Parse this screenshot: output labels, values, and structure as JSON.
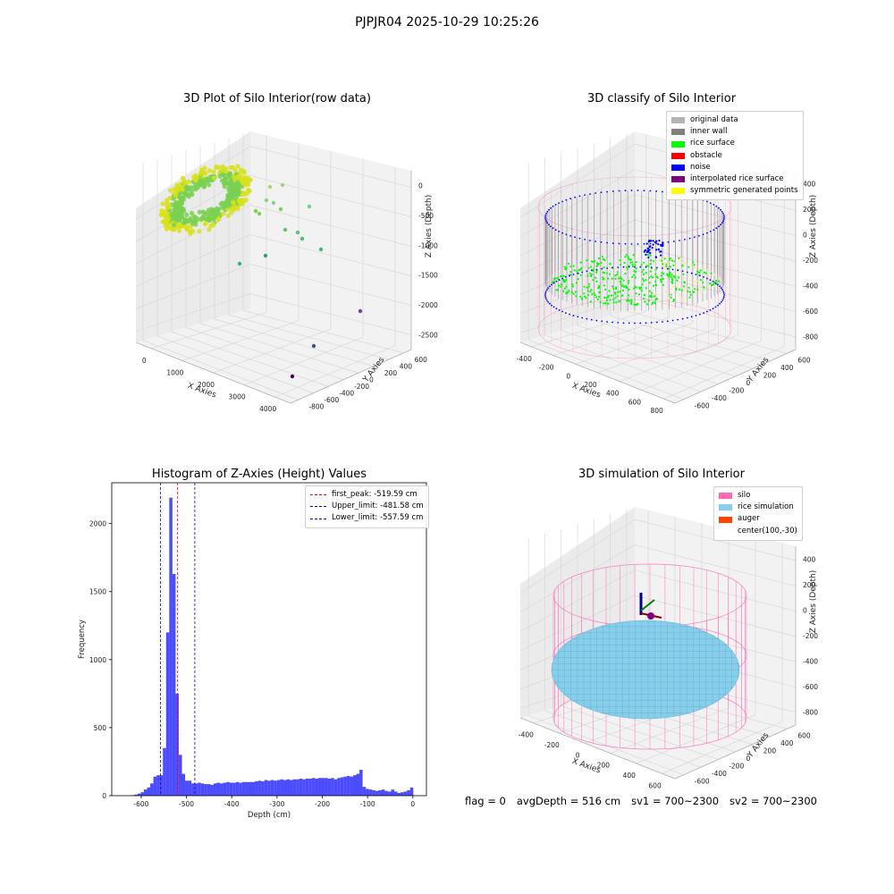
{
  "figure_title": "PJPJR04 2025-10-29 10:25:26",
  "status": {
    "flag": "flag = 0",
    "avg_depth": "avgDepth = 516 cm",
    "sv1": "sv1 = 700~2300",
    "sv2": "sv2 = 700~2300"
  },
  "chart_data": [
    {
      "type": "scatter",
      "title": "3D Plot of Silo Interior(row data)",
      "xlabel": "X Axies",
      "ylabel": "Y Axies",
      "zlabel": "Z Axies (Depth)",
      "x_ticks": [
        "0",
        "1000",
        "2000",
        "3000",
        "4000"
      ],
      "y_ticks": [
        "-800",
        "-600",
        "-400",
        "-200",
        "0",
        "200",
        "400",
        "600"
      ],
      "z_ticks": [
        "-2500",
        "-2000",
        "-1500",
        "-1000",
        "-500",
        "0"
      ],
      "colors": {
        "near": "#d8e219",
        "mid": "#7ad151",
        "far": "#440154"
      }
    },
    {
      "type": "scatter",
      "title": "3D classify of Silo Interior",
      "xlabel": "X Axies",
      "ylabel": "Y Axies",
      "zlabel": "Z Axies (Depth)",
      "x_ticks": [
        "-400",
        "-200",
        "0",
        "200",
        "400",
        "600",
        "800"
      ],
      "y_ticks": [
        "-600",
        "-400",
        "-200",
        "0",
        "200",
        "400",
        "600"
      ],
      "z_ticks": [
        "-800",
        "-600",
        "-400",
        "-200",
        "0",
        "200",
        "400"
      ],
      "legend_placement": "top-right",
      "legend": [
        {
          "label": "original data",
          "color": "#b3b3b3"
        },
        {
          "label": "inner wall",
          "color": "#808080"
        },
        {
          "label": "rice surface",
          "color": "#00ff00"
        },
        {
          "label": "obstacle",
          "color": "#ff0000"
        },
        {
          "label": "noise",
          "color": "#0000ff"
        },
        {
          "label": "interpolated rice surface",
          "color": "#800080"
        },
        {
          "label": "symmetric generated points",
          "color": "#ffff00"
        }
      ]
    },
    {
      "type": "bar",
      "title": "Histogram of Z-Axies (Height) Values",
      "xlabel": "Depth (cm)",
      "ylabel": "Frequency",
      "xlim": [
        -665,
        30
      ],
      "ylim": [
        0,
        2300
      ],
      "x_ticks": [
        -600,
        -500,
        -400,
        -300,
        -200,
        -100,
        0
      ],
      "y_ticks": [
        0,
        500,
        1000,
        1500,
        2000
      ],
      "bar_color": "#0000ff",
      "bins": [
        [
          -622,
          -615,
          3
        ],
        [
          -615,
          -608,
          8
        ],
        [
          -608,
          -601,
          15
        ],
        [
          -601,
          -594,
          25
        ],
        [
          -594,
          -587,
          45
        ],
        [
          -587,
          -580,
          60
        ],
        [
          -580,
          -573,
          90
        ],
        [
          -573,
          -566,
          140
        ],
        [
          -566,
          -559,
          150
        ],
        [
          -559,
          -552,
          150
        ],
        [
          -552,
          -545,
          350
        ],
        [
          -545,
          -538,
          1200
        ],
        [
          -538,
          -531,
          2190
        ],
        [
          -531,
          -524,
          1630
        ],
        [
          -524,
          -517,
          750
        ],
        [
          -517,
          -510,
          300
        ],
        [
          -510,
          -503,
          160
        ],
        [
          -503,
          -496,
          110
        ],
        [
          -496,
          -489,
          110
        ],
        [
          -489,
          -482,
          90
        ],
        [
          -482,
          -475,
          90
        ],
        [
          -475,
          -468,
          95
        ],
        [
          -468,
          -461,
          90
        ],
        [
          -461,
          -454,
          85
        ],
        [
          -454,
          -447,
          85
        ],
        [
          -447,
          -440,
          80
        ],
        [
          -440,
          -433,
          90
        ],
        [
          -433,
          -426,
          95
        ],
        [
          -426,
          -419,
          90
        ],
        [
          -419,
          -412,
          95
        ],
        [
          -412,
          -405,
          100
        ],
        [
          -405,
          -398,
          95
        ],
        [
          -398,
          -391,
          95
        ],
        [
          -391,
          -384,
          100
        ],
        [
          -384,
          -377,
          95
        ],
        [
          -377,
          -370,
          100
        ],
        [
          -370,
          -363,
          100
        ],
        [
          -363,
          -356,
          100
        ],
        [
          -356,
          -349,
          100
        ],
        [
          -349,
          -342,
          105
        ],
        [
          -342,
          -335,
          110
        ],
        [
          -335,
          -328,
          105
        ],
        [
          -328,
          -321,
          115
        ],
        [
          -321,
          -314,
          110
        ],
        [
          -314,
          -307,
          115
        ],
        [
          -307,
          -300,
          110
        ],
        [
          -300,
          -293,
          115
        ],
        [
          -293,
          -286,
          120
        ],
        [
          -286,
          -279,
          115
        ],
        [
          -279,
          -272,
          120
        ],
        [
          -272,
          -265,
          115
        ],
        [
          -265,
          -258,
          120
        ],
        [
          -258,
          -251,
          120
        ],
        [
          -251,
          -244,
          125
        ],
        [
          -244,
          -237,
          120
        ],
        [
          -237,
          -230,
          125
        ],
        [
          -230,
          -223,
          125
        ],
        [
          -223,
          -216,
          130
        ],
        [
          -216,
          -209,
          125
        ],
        [
          -209,
          -202,
          130
        ],
        [
          -202,
          -195,
          130
        ],
        [
          -195,
          -188,
          130
        ],
        [
          -188,
          -181,
          125
        ],
        [
          -181,
          -174,
          130
        ],
        [
          -174,
          -167,
          120
        ],
        [
          -167,
          -160,
          130
        ],
        [
          -160,
          -153,
          135
        ],
        [
          -153,
          -146,
          140
        ],
        [
          -146,
          -139,
          145
        ],
        [
          -139,
          -132,
          140
        ],
        [
          -132,
          -125,
          150
        ],
        [
          -125,
          -118,
          160
        ],
        [
          -118,
          -111,
          190
        ],
        [
          -111,
          -104,
          65
        ],
        [
          -104,
          -97,
          50
        ],
        [
          -97,
          -90,
          45
        ],
        [
          -90,
          -83,
          40
        ],
        [
          -83,
          -76,
          35
        ],
        [
          -76,
          -69,
          40
        ],
        [
          -69,
          -62,
          45
        ],
        [
          -62,
          -55,
          35
        ],
        [
          -55,
          -48,
          30
        ],
        [
          -48,
          -41,
          45
        ],
        [
          -41,
          -34,
          30
        ],
        [
          -34,
          -27,
          20
        ],
        [
          -27,
          -20,
          25
        ],
        [
          -20,
          -13,
          30
        ],
        [
          -13,
          -6,
          40
        ],
        [
          -6,
          1,
          60
        ]
      ],
      "vlines": [
        {
          "label": "first_peak: -519.59 cm",
          "value": -519.59,
          "color": "#ff0000"
        },
        {
          "label": "Upper_limit: -481.58 cm",
          "value": -481.58,
          "color": "#0000ff"
        },
        {
          "label": "Lower_limit: -557.59 cm",
          "value": -557.59,
          "color": "#0000ff"
        }
      ],
      "legend_placement": "top-right"
    },
    {
      "type": "scatter",
      "title": "3D simulation of Silo Interior",
      "xlabel": "X Axies",
      "ylabel": "Y Axies",
      "zlabel": "Z Axies (Depth)",
      "x_ticks": [
        "-400",
        "-200",
        "0",
        "200",
        "400",
        "600"
      ],
      "y_ticks": [
        "-600",
        "-400",
        "-200",
        "0",
        "200",
        "400",
        "600"
      ],
      "z_ticks": [
        "-800",
        "-600",
        "-400",
        "-200",
        "0",
        "200",
        "400"
      ],
      "legend_placement": "top-right",
      "legend": [
        {
          "label": "silo",
          "color": "#ff69b4"
        },
        {
          "label": "rice simulation",
          "color": "#87ceeb"
        },
        {
          "label": "auger",
          "color": "#ff4500"
        },
        {
          "label": "center(100,-30)",
          "color": ""
        }
      ]
    }
  ]
}
